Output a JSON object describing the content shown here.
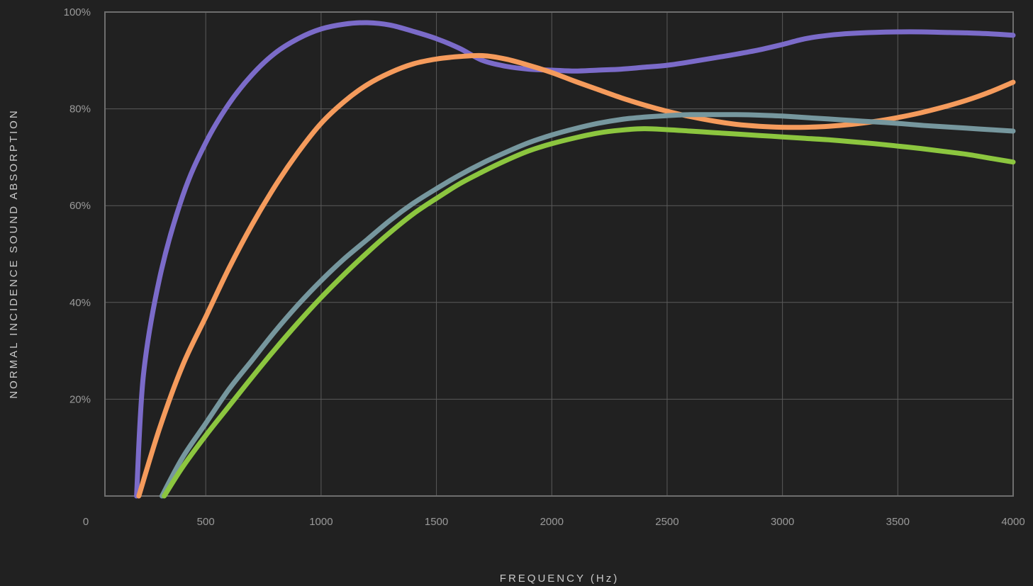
{
  "chart_data": {
    "type": "line",
    "xlabel": "FREQUENCY (Hz)",
    "ylabel": "NORMAL INCIDENCE SOUND ABSORPTION",
    "xlim": [
      63,
      4000
    ],
    "ylim": [
      0,
      100
    ],
    "x_ticks": [
      500,
      1000,
      1500,
      2000,
      2500,
      3000,
      3500,
      4000
    ],
    "x_tick_labels": [
      "500",
      "1000",
      "1500",
      "2000",
      "2500",
      "3000",
      "3500",
      "4000"
    ],
    "x_origin_label": "0",
    "y_ticks": [
      20,
      40,
      60,
      80,
      100
    ],
    "y_tick_labels": [
      "20%",
      "40%",
      "60%",
      "80%",
      "100%"
    ],
    "grid": true,
    "legend": "none",
    "series": [
      {
        "color": "#7b6bc9",
        "points": [
          [
            200,
            0
          ],
          [
            230,
            25
          ],
          [
            300,
            45
          ],
          [
            400,
            62
          ],
          [
            500,
            73
          ],
          [
            600,
            81
          ],
          [
            700,
            87
          ],
          [
            800,
            91.5
          ],
          [
            900,
            94.5
          ],
          [
            1000,
            96.5
          ],
          [
            1100,
            97.5
          ],
          [
            1200,
            97.8
          ],
          [
            1300,
            97.3
          ],
          [
            1400,
            96
          ],
          [
            1500,
            94.5
          ],
          [
            1600,
            92.5
          ],
          [
            1700,
            90
          ],
          [
            1800,
            88.8
          ],
          [
            1900,
            88.2
          ],
          [
            2000,
            88
          ],
          [
            2100,
            87.8
          ],
          [
            2200,
            88
          ],
          [
            2300,
            88.2
          ],
          [
            2400,
            88.6
          ],
          [
            2500,
            89
          ],
          [
            2600,
            89.7
          ],
          [
            2700,
            90.5
          ],
          [
            2800,
            91.3
          ],
          [
            2900,
            92.2
          ],
          [
            3000,
            93.3
          ],
          [
            3100,
            94.5
          ],
          [
            3200,
            95.2
          ],
          [
            3300,
            95.6
          ],
          [
            3400,
            95.8
          ],
          [
            3500,
            95.9
          ],
          [
            3600,
            95.9
          ],
          [
            3700,
            95.8
          ],
          [
            3800,
            95.7
          ],
          [
            3900,
            95.5
          ],
          [
            4000,
            95.2
          ]
        ]
      },
      {
        "color": "#f59b5c",
        "points": [
          [
            210,
            0
          ],
          [
            300,
            14
          ],
          [
            400,
            27
          ],
          [
            500,
            37
          ],
          [
            600,
            47
          ],
          [
            700,
            56
          ],
          [
            800,
            64
          ],
          [
            900,
            71
          ],
          [
            1000,
            77
          ],
          [
            1100,
            81.5
          ],
          [
            1200,
            85
          ],
          [
            1300,
            87.5
          ],
          [
            1400,
            89.3
          ],
          [
            1500,
            90.3
          ],
          [
            1600,
            90.8
          ],
          [
            1700,
            91
          ],
          [
            1800,
            90.3
          ],
          [
            1900,
            89
          ],
          [
            2000,
            87.5
          ],
          [
            2100,
            85.7
          ],
          [
            2200,
            84
          ],
          [
            2300,
            82.3
          ],
          [
            2400,
            80.8
          ],
          [
            2500,
            79.5
          ],
          [
            2600,
            78.4
          ],
          [
            2700,
            77.5
          ],
          [
            2800,
            76.8
          ],
          [
            2900,
            76.4
          ],
          [
            3000,
            76.2
          ],
          [
            3100,
            76.2
          ],
          [
            3200,
            76.4
          ],
          [
            3300,
            76.8
          ],
          [
            3400,
            77.4
          ],
          [
            3500,
            78.2
          ],
          [
            3600,
            79.2
          ],
          [
            3700,
            80.4
          ],
          [
            3800,
            81.8
          ],
          [
            3900,
            83.5
          ],
          [
            4000,
            85.5
          ]
        ]
      },
      {
        "color": "#76979e",
        "points": [
          [
            310,
            0
          ],
          [
            400,
            8
          ],
          [
            500,
            15
          ],
          [
            600,
            22
          ],
          [
            700,
            28
          ],
          [
            800,
            34
          ],
          [
            900,
            39.5
          ],
          [
            1000,
            44.5
          ],
          [
            1100,
            49
          ],
          [
            1200,
            53
          ],
          [
            1300,
            57
          ],
          [
            1400,
            60.5
          ],
          [
            1500,
            63.5
          ],
          [
            1600,
            66.3
          ],
          [
            1700,
            68.8
          ],
          [
            1800,
            71
          ],
          [
            1900,
            73
          ],
          [
            2000,
            74.6
          ],
          [
            2100,
            75.9
          ],
          [
            2200,
            77
          ],
          [
            2300,
            77.8
          ],
          [
            2400,
            78.3
          ],
          [
            2500,
            78.6
          ],
          [
            2600,
            78.8
          ],
          [
            2700,
            78.8
          ],
          [
            2800,
            78.8
          ],
          [
            2900,
            78.7
          ],
          [
            3000,
            78.5
          ],
          [
            3100,
            78.2
          ],
          [
            3200,
            77.9
          ],
          [
            3300,
            77.6
          ],
          [
            3400,
            77.3
          ],
          [
            3500,
            77
          ],
          [
            3600,
            76.6
          ],
          [
            3700,
            76.3
          ],
          [
            3800,
            76
          ],
          [
            3900,
            75.7
          ],
          [
            4000,
            75.4
          ]
        ]
      },
      {
        "color": "#8cc63f",
        "points": [
          [
            320,
            0
          ],
          [
            400,
            6
          ],
          [
            500,
            12.5
          ],
          [
            600,
            18.5
          ],
          [
            700,
            24.5
          ],
          [
            800,
            30.3
          ],
          [
            900,
            35.8
          ],
          [
            1000,
            41
          ],
          [
            1100,
            45.8
          ],
          [
            1200,
            50.3
          ],
          [
            1300,
            54.5
          ],
          [
            1400,
            58.3
          ],
          [
            1500,
            61.5
          ],
          [
            1600,
            64.5
          ],
          [
            1700,
            67
          ],
          [
            1800,
            69.3
          ],
          [
            1900,
            71.3
          ],
          [
            2000,
            72.8
          ],
          [
            2100,
            74
          ],
          [
            2200,
            75
          ],
          [
            2300,
            75.6
          ],
          [
            2400,
            75.9
          ],
          [
            2500,
            75.7
          ],
          [
            2600,
            75.4
          ],
          [
            2700,
            75.1
          ],
          [
            2800,
            74.8
          ],
          [
            2900,
            74.5
          ],
          [
            3000,
            74.2
          ],
          [
            3100,
            73.9
          ],
          [
            3200,
            73.6
          ],
          [
            3300,
            73.2
          ],
          [
            3400,
            72.8
          ],
          [
            3500,
            72.3
          ],
          [
            3600,
            71.8
          ],
          [
            3700,
            71.2
          ],
          [
            3800,
            70.6
          ],
          [
            3900,
            69.8
          ],
          [
            4000,
            69
          ]
        ]
      }
    ]
  }
}
